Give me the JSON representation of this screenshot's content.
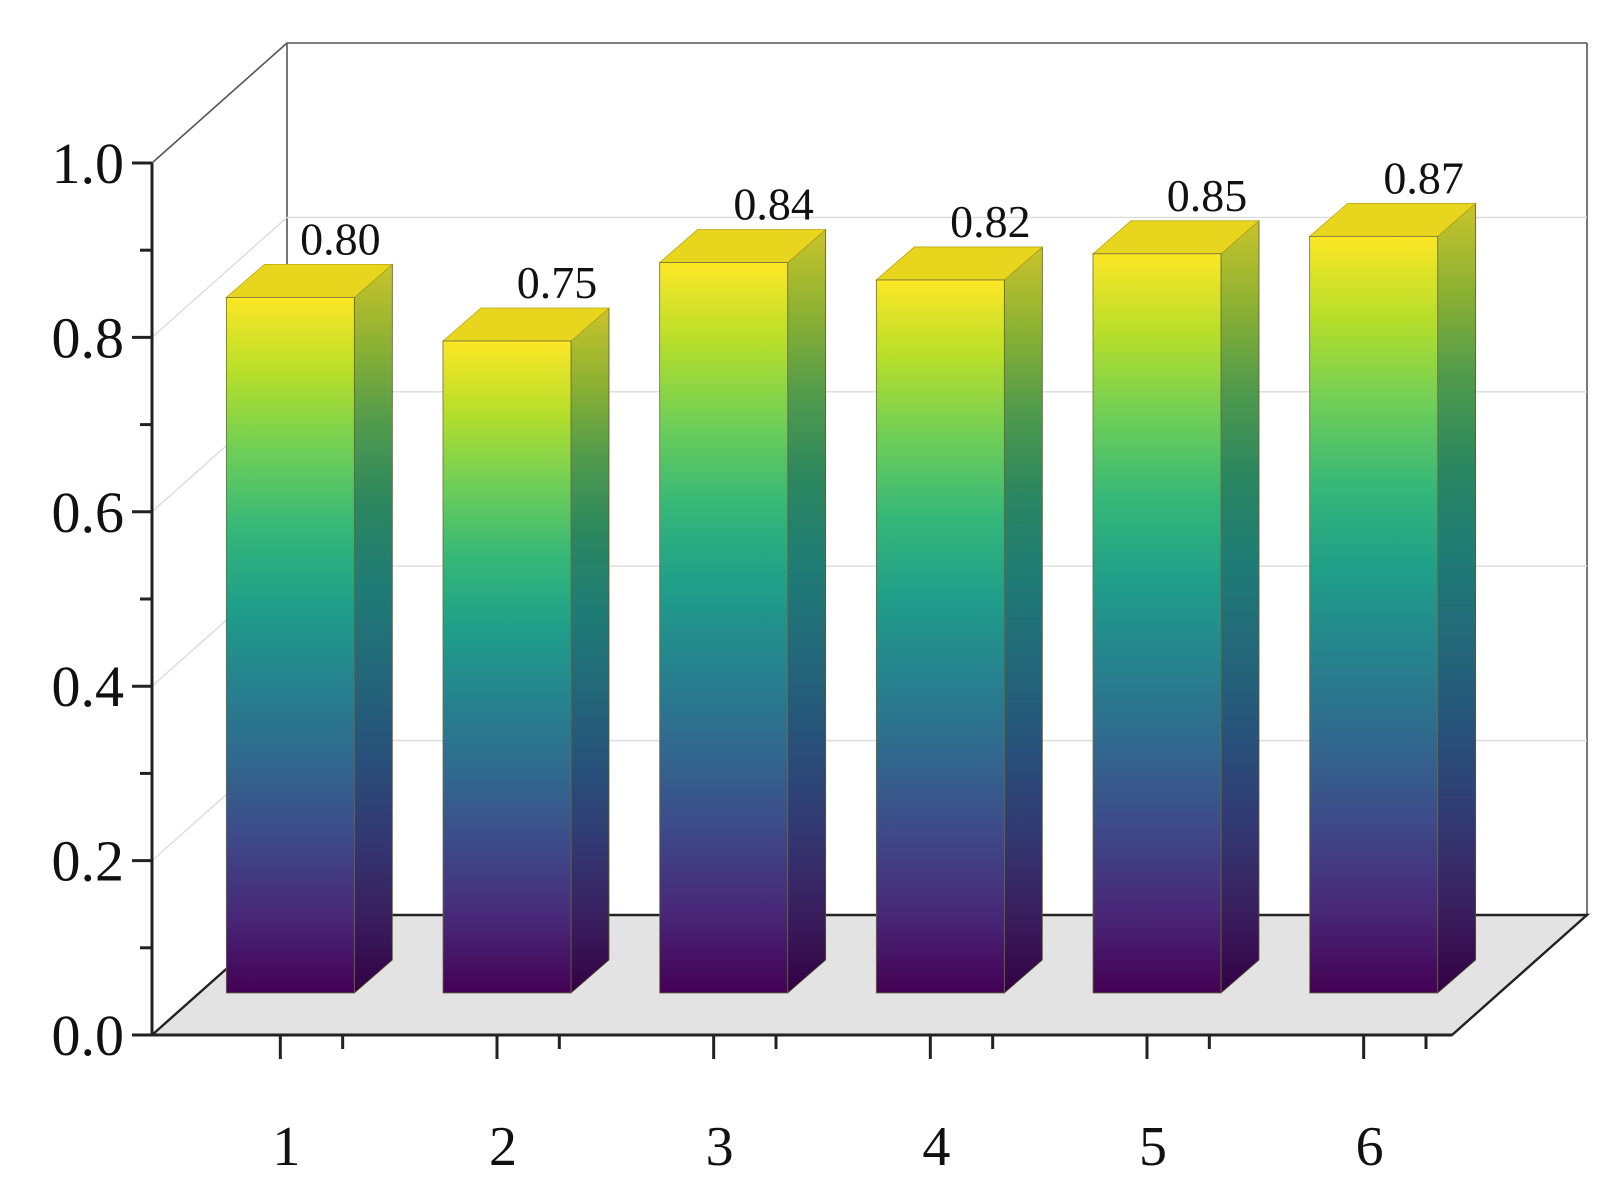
{
  "chart_data": {
    "type": "bar",
    "categories": [
      "1",
      "2",
      "3",
      "4",
      "5",
      "6"
    ],
    "values": [
      0.8,
      0.75,
      0.84,
      0.82,
      0.85,
      0.87
    ],
    "value_labels": [
      "0.80",
      "0.75",
      "0.84",
      "0.82",
      "0.85",
      "0.87"
    ],
    "y_ticks": [
      "0.0",
      "0.2",
      "0.4",
      "0.6",
      "0.8",
      "1.0"
    ],
    "title": "",
    "xlabel": "",
    "ylabel": "",
    "ylim": [
      0,
      1.0
    ],
    "grid": true,
    "style": "3d",
    "colormap": "viridis",
    "colors": {
      "bar_top": "#e8d51e",
      "bar_gradient": [
        "#fde725",
        "#b5de2b",
        "#6ece58",
        "#35b779",
        "#1f9e89",
        "#26828e",
        "#31688e",
        "#3e4989",
        "#482878",
        "#440154"
      ],
      "floor": "#e3e3e3"
    }
  }
}
